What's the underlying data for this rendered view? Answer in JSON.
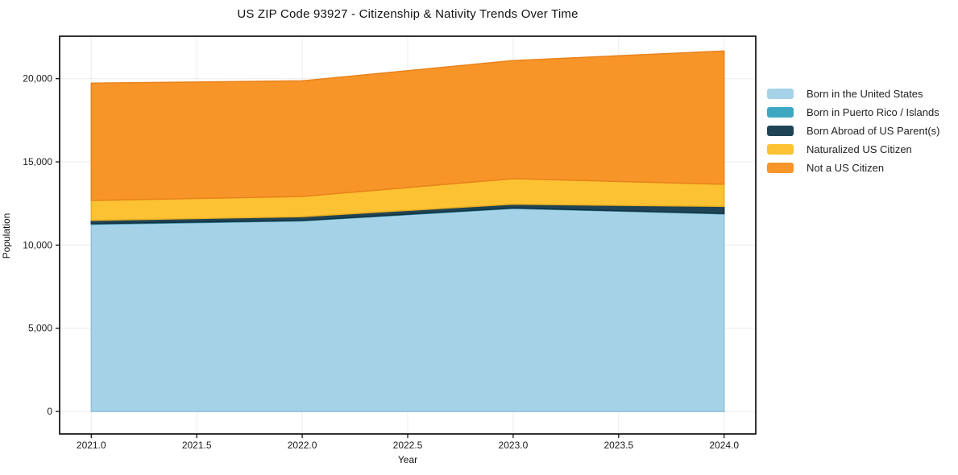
{
  "chart_data": {
    "type": "area",
    "stacked": true,
    "title": "US ZIP Code 93927 - Citizenship & Nativity Trends Over Time",
    "xlabel": "Year",
    "ylabel": "Population",
    "x": [
      2021,
      2022,
      2023,
      2024
    ],
    "series": [
      {
        "name": "Born in the United States",
        "color": "#A6D2E8",
        "edge": "#8FBEDA",
        "values": [
          11250,
          11450,
          12200,
          11870
        ]
      },
      {
        "name": "Born in Puerto Rico / Islands",
        "color": "#3EA8C2",
        "edge": "#3693AB",
        "values": [
          30,
          30,
          30,
          30
        ]
      },
      {
        "name": "Born Abroad of US Parent(s)",
        "color": "#1F4456",
        "edge": "#16323F",
        "values": [
          200,
          230,
          230,
          420
        ]
      },
      {
        "name": "Naturalized US Citizen",
        "color": "#FCC233",
        "edge": "#E9AE1F",
        "values": [
          1200,
          1210,
          1530,
          1340
        ]
      },
      {
        "name": "Not a US Citizen",
        "color": "#F89529",
        "edge": "#E8821B",
        "values": [
          7050,
          6950,
          7100,
          8000
        ]
      }
    ],
    "stack_totals": [
      19730,
      19870,
      21090,
      21660
    ],
    "x_ticks": [
      {
        "v": 2021.0,
        "label": "2021.0"
      },
      {
        "v": 2021.5,
        "label": "2021.5"
      },
      {
        "v": 2022.0,
        "label": "2022.0"
      },
      {
        "v": 2022.5,
        "label": "2022.5"
      },
      {
        "v": 2023.0,
        "label": "2023.0"
      },
      {
        "v": 2023.5,
        "label": "2023.5"
      },
      {
        "v": 2024.0,
        "label": "2024.0"
      }
    ],
    "y_ticks": [
      {
        "v": 0,
        "label": "0"
      },
      {
        "v": 5000,
        "label": "5,000"
      },
      {
        "v": 10000,
        "label": "10,000"
      },
      {
        "v": 15000,
        "label": "15,000"
      },
      {
        "v": 20000,
        "label": "20,000"
      }
    ],
    "xlim": [
      2020.85,
      2024.15
    ],
    "ylim": [
      -1350,
      22550
    ],
    "grid": true,
    "legend_position": "right"
  },
  "colors": {
    "background": "#FFFFFF",
    "grid": "#ECECEC",
    "frame": "#000000",
    "tick_text": "#1A1A1A"
  }
}
